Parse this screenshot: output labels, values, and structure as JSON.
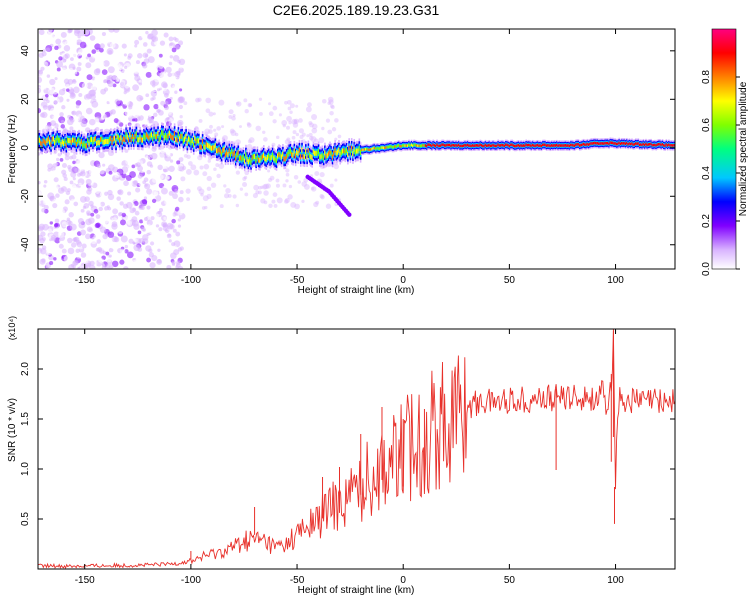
{
  "figure": {
    "title": "C2E6.2025.189.19.23.G31"
  },
  "chart_data": [
    {
      "type": "heatmap",
      "xlabel": "Height of straight line (km)",
      "ylabel": "Frequency (Hz)",
      "xlim": [
        -172,
        128
      ],
      "ylim": [
        -50,
        49
      ],
      "xticks": [
        -150,
        -100,
        -50,
        0,
        50,
        100
      ],
      "yticks": [
        -40,
        -20,
        0,
        20,
        40
      ],
      "grid": false,
      "colorbar": {
        "label": "Normalized spectral amplitude",
        "range": [
          0,
          1
        ],
        "ticks": [
          "0.0",
          "0.2",
          "0.4",
          "0.6",
          "0.8"
        ],
        "colormap": [
          "#ffffff",
          "#d9b3ff",
          "#8000ff",
          "#0000ff",
          "#00c8ff",
          "#00ff80",
          "#80ff00",
          "#ffff00",
          "#ff8000",
          "#ff0000",
          "#ff0080"
        ]
      },
      "main_band": [
        {
          "x": -172,
          "f": 3
        },
        {
          "x": -150,
          "f": 2
        },
        {
          "x": -130,
          "f": 4
        },
        {
          "x": -110,
          "f": 5
        },
        {
          "x": -100,
          "f": 3
        },
        {
          "x": -90,
          "f": 0
        },
        {
          "x": -80,
          "f": -3
        },
        {
          "x": -70,
          "f": -5
        },
        {
          "x": -60,
          "f": -4
        },
        {
          "x": -50,
          "f": -2
        },
        {
          "x": -40,
          "f": -3
        },
        {
          "x": -30,
          "f": -2
        },
        {
          "x": -20,
          "f": -1
        },
        {
          "x": -10,
          "f": 0
        },
        {
          "x": 0,
          "f": 1
        },
        {
          "x": 20,
          "f": 1
        },
        {
          "x": 50,
          "f": 1
        },
        {
          "x": 80,
          "f": 1
        },
        {
          "x": 95,
          "f": 2
        },
        {
          "x": 128,
          "f": 1
        }
      ],
      "secondary_branch": [
        {
          "x": -45,
          "f": -12
        },
        {
          "x": -35,
          "f": -18
        },
        {
          "x": -25,
          "f": -28
        }
      ]
    },
    {
      "type": "line",
      "xlabel": "Height of straight line (km)",
      "ylabel": "SNR (10 * v/v)",
      "yscale_label": "(x10⁴)",
      "xlim": [
        -172,
        128
      ],
      "ylim": [
        0,
        2.4
      ],
      "xticks": [
        -150,
        -100,
        -50,
        0,
        50,
        100
      ],
      "yticks": [
        "0.5",
        "1.0",
        "1.5",
        "2.0"
      ],
      "color": "#e8302a",
      "grid": false,
      "series": [
        {
          "x": [
            -172,
            -150,
            -120,
            -110,
            -100,
            -95,
            -90,
            -85,
            -80,
            -75,
            -70,
            -65,
            -60,
            -55,
            -50,
            -45,
            -40,
            -35,
            -30,
            -25,
            -20,
            -15,
            -10,
            -5,
            0,
            5,
            10,
            15,
            20,
            25,
            30,
            35,
            40,
            50,
            60,
            70,
            80,
            85,
            90,
            94,
            96,
            98,
            99,
            100,
            101,
            102,
            104,
            110,
            115,
            120,
            128
          ],
          "y": [
            0.03,
            0.03,
            0.04,
            0.05,
            0.08,
            0.12,
            0.15,
            0.18,
            0.22,
            0.28,
            0.3,
            0.28,
            0.22,
            0.25,
            0.35,
            0.42,
            0.5,
            0.6,
            0.68,
            0.75,
            0.82,
            0.95,
            1.05,
            1.1,
            1.18,
            1.25,
            1.32,
            1.4,
            1.48,
            1.55,
            1.62,
            1.66,
            1.68,
            1.69,
            1.7,
            1.71,
            1.72,
            1.72,
            1.71,
            1.75,
            1.5,
            1.9,
            2.35,
            0.85,
            1.6,
            1.7,
            1.69,
            1.68,
            1.68,
            1.68,
            1.68
          ]
        }
      ],
      "spikes": [
        {
          "x": -100,
          "y": 0.18
        },
        {
          "x": -70,
          "y": 0.62
        },
        {
          "x": -38,
          "y": 0.92
        },
        {
          "x": -30,
          "y": 1.02
        },
        {
          "x": -20,
          "y": 1.35
        },
        {
          "x": -10,
          "y": 1.62
        },
        {
          "x": 0,
          "y": 1.5
        },
        {
          "x": 10,
          "y": 1.6
        },
        {
          "x": 72,
          "y": 1.8
        },
        {
          "x": 98,
          "y": 1.95
        },
        {
          "x": 99,
          "y": 2.4
        },
        {
          "x": 99.5,
          "y": 0.82
        }
      ]
    }
  ]
}
